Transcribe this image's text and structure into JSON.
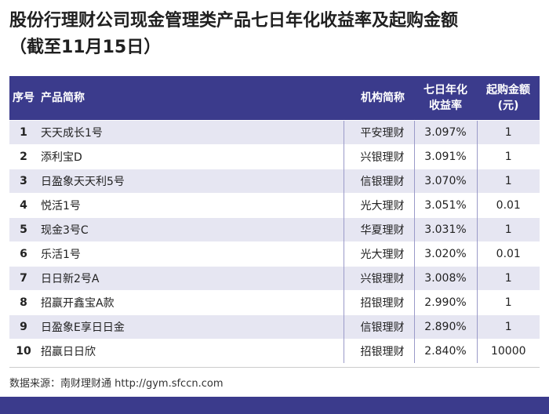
{
  "title": {
    "line1": "股份行理财公司现金管理类产品七日年化收益率及起购金额",
    "line2": "（截至11月15日）"
  },
  "table": {
    "headers": {
      "no": "序号",
      "name": "产品简称",
      "inst": "机构简称",
      "rate_1": "七日年化",
      "rate_2": "收益率",
      "min_1": "起购金额",
      "min_2": "(元)"
    },
    "rows": [
      {
        "no": "1",
        "name": "天天成长1号",
        "inst": "平安理财",
        "rate": "3.097%",
        "min": "1"
      },
      {
        "no": "2",
        "name": "添利宝D",
        "inst": "兴银理财",
        "rate": "3.091%",
        "min": "1"
      },
      {
        "no": "3",
        "name": "日盈象天天利5号",
        "inst": "信银理财",
        "rate": "3.070%",
        "min": "1"
      },
      {
        "no": "4",
        "name": "悦活1号",
        "inst": "光大理财",
        "rate": "3.051%",
        "min": "0.01"
      },
      {
        "no": "5",
        "name": "现金3号C",
        "inst": "华夏理财",
        "rate": "3.031%",
        "min": "1"
      },
      {
        "no": "6",
        "name": "乐活1号",
        "inst": "光大理财",
        "rate": "3.020%",
        "min": "0.01"
      },
      {
        "no": "7",
        "name": "日日新2号A",
        "inst": "兴银理财",
        "rate": "3.008%",
        "min": "1"
      },
      {
        "no": "8",
        "name": "招赢开鑫宝A款",
        "inst": "招银理财",
        "rate": "2.990%",
        "min": "1"
      },
      {
        "no": "9",
        "name": "日盈象E享日日金",
        "inst": "信银理财",
        "rate": "2.890%",
        "min": "1"
      },
      {
        "no": "10",
        "name": "招赢日日欣",
        "inst": "招银理财",
        "rate": "2.840%",
        "min": "10000"
      }
    ]
  },
  "source": "数据来源：南财理财通 http://gym.sfccn.com",
  "colors": {
    "header_bg": "#3b3b8c",
    "row_alt_bg": "#e6e6f2"
  }
}
